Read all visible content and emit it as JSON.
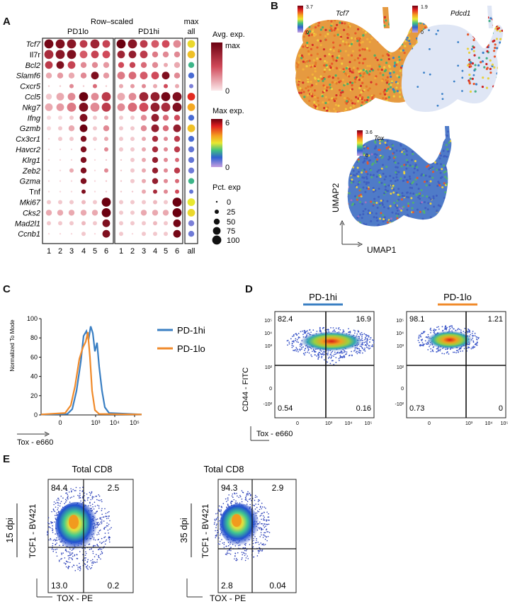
{
  "panels": {
    "a": "A",
    "b": "B",
    "c": "C",
    "d": "D",
    "e": "E"
  },
  "panel_a": {
    "title": "Row–scaled",
    "group1": "PD1lo",
    "group2": "PD1hi",
    "max_title": "max",
    "max_sub": "all",
    "xticks": [
      "1",
      "2",
      "3",
      "4",
      "5",
      "6"
    ],
    "all_tick": "all",
    "genes": [
      "Tcf7",
      "Il7r",
      "Bcl2",
      "Slamf6",
      "Cxcr5",
      "Ccl5",
      "Nkg7",
      "Ifng",
      "Gzmb",
      "Cx3cr1",
      "Havcr2",
      "Klrg1",
      "Zeb2",
      "Gzma",
      "Tnf",
      "Mki67",
      "Cks2",
      "Mad2l1",
      "Ccnb1"
    ],
    "italic_flags": [
      1,
      0,
      1,
      1,
      1,
      1,
      1,
      1,
      1,
      1,
      1,
      1,
      1,
      1,
      0,
      1,
      1,
      1,
      1
    ],
    "legend": {
      "avg_title": "Avg. exp.",
      "avg_max": "max",
      "avg_min": "0",
      "maxexp_title": "Max exp.",
      "maxexp_max": "6",
      "maxexp_min": "0",
      "pct_title": "Pct. exp",
      "pct_values": [
        "0",
        "25",
        "50",
        "75",
        "100"
      ]
    },
    "dot_data": {
      "pd1lo_size": [
        [
          4,
          4,
          4,
          3,
          4,
          3
        ],
        [
          4,
          4,
          4,
          3,
          3,
          3
        ],
        [
          3,
          3,
          3,
          2,
          2,
          2
        ],
        [
          2,
          2,
          2,
          2,
          3,
          2
        ],
        [
          0,
          0,
          1,
          0,
          1,
          0
        ],
        [
          2,
          3,
          3,
          4,
          3,
          4
        ],
        [
          3,
          3,
          4,
          4,
          4,
          4
        ],
        [
          1,
          1,
          1,
          3,
          1,
          1
        ],
        [
          1,
          1,
          2,
          3,
          1,
          2
        ],
        [
          0,
          1,
          1,
          2,
          1,
          1
        ],
        [
          0,
          0,
          0,
          2,
          0,
          1
        ],
        [
          0,
          0,
          0,
          2,
          0,
          0
        ],
        [
          0,
          0,
          1,
          2,
          0,
          1
        ],
        [
          0,
          0,
          0,
          2,
          0,
          0
        ],
        [
          0,
          0,
          0,
          1,
          0,
          0
        ],
        [
          1,
          1,
          1,
          1,
          1,
          4
        ],
        [
          2,
          2,
          2,
          2,
          2,
          4
        ],
        [
          1,
          1,
          1,
          1,
          1,
          3
        ],
        [
          0,
          0,
          0,
          1,
          0,
          3
        ]
      ],
      "pd1lo_color": [
        [
          0.95,
          0.9,
          0.85,
          0.6,
          0.75,
          0.55
        ],
        [
          0.7,
          0.85,
          0.9,
          0.45,
          0.55,
          0.5
        ],
        [
          0.6,
          0.9,
          0.55,
          0.3,
          0.3,
          0.25
        ],
        [
          0.2,
          0.25,
          0.2,
          0.3,
          0.9,
          0.25
        ],
        [
          0.1,
          0.1,
          0.3,
          0.1,
          0.4,
          0.1
        ],
        [
          0.1,
          0.2,
          0.3,
          1.0,
          0.3,
          0.6
        ],
        [
          0.2,
          0.25,
          0.35,
          0.9,
          0.3,
          0.6
        ],
        [
          0.05,
          0.05,
          0.1,
          0.9,
          0.1,
          0.2
        ],
        [
          0.05,
          0.1,
          0.2,
          1.0,
          0.1,
          0.3
        ],
        [
          0.05,
          0.1,
          0.1,
          0.9,
          0.1,
          0.2
        ],
        [
          0.05,
          0.05,
          0.05,
          0.9,
          0.05,
          0.3
        ],
        [
          0.05,
          0.05,
          0.05,
          0.9,
          0.05,
          0.1
        ],
        [
          0.05,
          0.05,
          0.2,
          0.9,
          0.05,
          0.3
        ],
        [
          0.05,
          0.05,
          0.05,
          0.9,
          0.05,
          0.1
        ],
        [
          0.05,
          0.05,
          0.05,
          0.9,
          0.05,
          0.1
        ],
        [
          0.1,
          0.1,
          0.1,
          0.15,
          0.1,
          1.0
        ],
        [
          0.2,
          0.2,
          0.2,
          0.2,
          0.2,
          1.0
        ],
        [
          0.1,
          0.1,
          0.1,
          0.15,
          0.1,
          0.9
        ],
        [
          0.05,
          0.05,
          0.05,
          0.1,
          0.05,
          0.9
        ]
      ],
      "pd1hi_size": [
        [
          4,
          4,
          3,
          3,
          3,
          3
        ],
        [
          3,
          3,
          3,
          2,
          2,
          2
        ],
        [
          2,
          2,
          2,
          2,
          1,
          2
        ],
        [
          3,
          3,
          3,
          3,
          3,
          2
        ],
        [
          1,
          1,
          1,
          1,
          1,
          1
        ],
        [
          3,
          3,
          4,
          4,
          4,
          4
        ],
        [
          3,
          4,
          4,
          4,
          4,
          4
        ],
        [
          1,
          1,
          2,
          3,
          2,
          2
        ],
        [
          1,
          1,
          2,
          3,
          2,
          3
        ],
        [
          1,
          1,
          1,
          2,
          1,
          2
        ],
        [
          1,
          1,
          1,
          2,
          1,
          2
        ],
        [
          0,
          1,
          1,
          2,
          1,
          1
        ],
        [
          0,
          1,
          1,
          2,
          1,
          2
        ],
        [
          0,
          1,
          1,
          2,
          1,
          1
        ],
        [
          0,
          0,
          1,
          1,
          1,
          1
        ],
        [
          1,
          1,
          1,
          1,
          1,
          4
        ],
        [
          1,
          1,
          2,
          2,
          2,
          4
        ],
        [
          1,
          1,
          1,
          1,
          1,
          3
        ],
        [
          1,
          0,
          1,
          1,
          1,
          3
        ]
      ],
      "pd1hi_color": [
        [
          1.0,
          0.85,
          0.6,
          0.45,
          0.5,
          0.3
        ],
        [
          0.75,
          0.8,
          0.6,
          0.35,
          0.3,
          0.3
        ],
        [
          0.5,
          0.55,
          0.4,
          0.3,
          0.2,
          0.2
        ],
        [
          0.35,
          0.4,
          0.45,
          0.5,
          0.9,
          0.3
        ],
        [
          0.2,
          0.25,
          0.3,
          0.2,
          0.5,
          0.2
        ],
        [
          0.2,
          0.3,
          0.75,
          0.8,
          0.95,
          0.9
        ],
        [
          0.3,
          0.4,
          0.5,
          0.8,
          0.7,
          0.9
        ],
        [
          0.1,
          0.1,
          0.3,
          0.8,
          0.4,
          0.5
        ],
        [
          0.1,
          0.1,
          0.3,
          0.8,
          0.4,
          0.8
        ],
        [
          0.1,
          0.1,
          0.2,
          0.7,
          0.3,
          0.6
        ],
        [
          0.1,
          0.1,
          0.2,
          0.7,
          0.3,
          0.6
        ],
        [
          0.1,
          0.1,
          0.2,
          0.8,
          0.3,
          0.4
        ],
        [
          0.1,
          0.1,
          0.2,
          0.8,
          0.3,
          0.6
        ],
        [
          0.1,
          0.1,
          0.2,
          0.8,
          0.3,
          0.4
        ],
        [
          0.1,
          0.1,
          0.2,
          0.7,
          0.3,
          0.5
        ],
        [
          0.1,
          0.1,
          0.1,
          0.15,
          0.1,
          1.0
        ],
        [
          0.1,
          0.1,
          0.2,
          0.2,
          0.2,
          1.0
        ],
        [
          0.1,
          0.1,
          0.1,
          0.15,
          0.1,
          0.95
        ],
        [
          0.1,
          0.05,
          0.1,
          0.1,
          0.1,
          0.95
        ]
      ],
      "max_exp": [
        3.2,
        3.5,
        2.0,
        1.0,
        0.6,
        5.0,
        3.8,
        1.0,
        3.5,
        1.0,
        0.8,
        0.8,
        0.7,
        2.0,
        0.8,
        3.0,
        3.2,
        0.6,
        0.7
      ],
      "max_size": [
        3,
        3,
        2,
        2,
        1,
        3,
        3,
        2,
        3,
        2,
        2,
        2,
        2,
        2,
        1,
        3,
        3,
        2,
        2
      ]
    }
  },
  "panel_b": {
    "tcf7": {
      "label": "Tcf7",
      "scale_max": "3.7",
      "scale_min": "0"
    },
    "pdcd1": {
      "label": "Pdcd1",
      "scale_max": "1.9",
      "scale_min": "0"
    },
    "tox": {
      "label": "Tox",
      "scale_max": "3.6",
      "scale_min": "0"
    },
    "xaxis": "UMAP1",
    "yaxis": "UMAP2"
  },
  "panel_c": {
    "chart_data": {
      "type": "line",
      "ylabel": "Normalized To Mode",
      "xlabel": "Tox - e660",
      "yticks": [
        "0",
        "20",
        "40",
        "60",
        "80",
        "100"
      ],
      "xticks": [
        "0",
        "10³",
        "10⁴",
        "10⁵"
      ],
      "ylim": [
        0,
        100
      ],
      "series": [
        {
          "name": "PD-1hi",
          "color": "#3a7fc3"
        },
        {
          "name": "PD-1lo",
          "color": "#f08a2a"
        }
      ]
    }
  },
  "panel_d": {
    "hi_title": "PD-1hi",
    "lo_title": "PD-1lo",
    "hi_q": {
      "ul": "82.4",
      "ur": "16.9",
      "ll": "0.54",
      "lr": "0.16"
    },
    "lo_q": {
      "ul": "98.1",
      "ur": "1.21",
      "ll": "0.73",
      "lr": "0"
    },
    "ylabel": "CD44 - FITC",
    "xlabel": "Tox - e660",
    "yticks": [
      "10⁵",
      "10⁴",
      "10³",
      "10²",
      "0",
      "-10²"
    ],
    "xticks": [
      "0",
      "10³",
      "10⁴",
      "10⁵"
    ]
  },
  "panel_e": {
    "left": {
      "title": "Total CD8",
      "dpi": "15 dpi",
      "ul": "84.4",
      "ur": "2.5",
      "ll": "13.0",
      "lr": "0.2"
    },
    "right": {
      "title": "Total CD8",
      "dpi": "35 dpi",
      "ul": "94.3",
      "ur": "2.9",
      "ll": "2.8",
      "lr": "0.04"
    },
    "ylabel": "TCF1 - BV421",
    "xlabel": "TOX - PE"
  }
}
